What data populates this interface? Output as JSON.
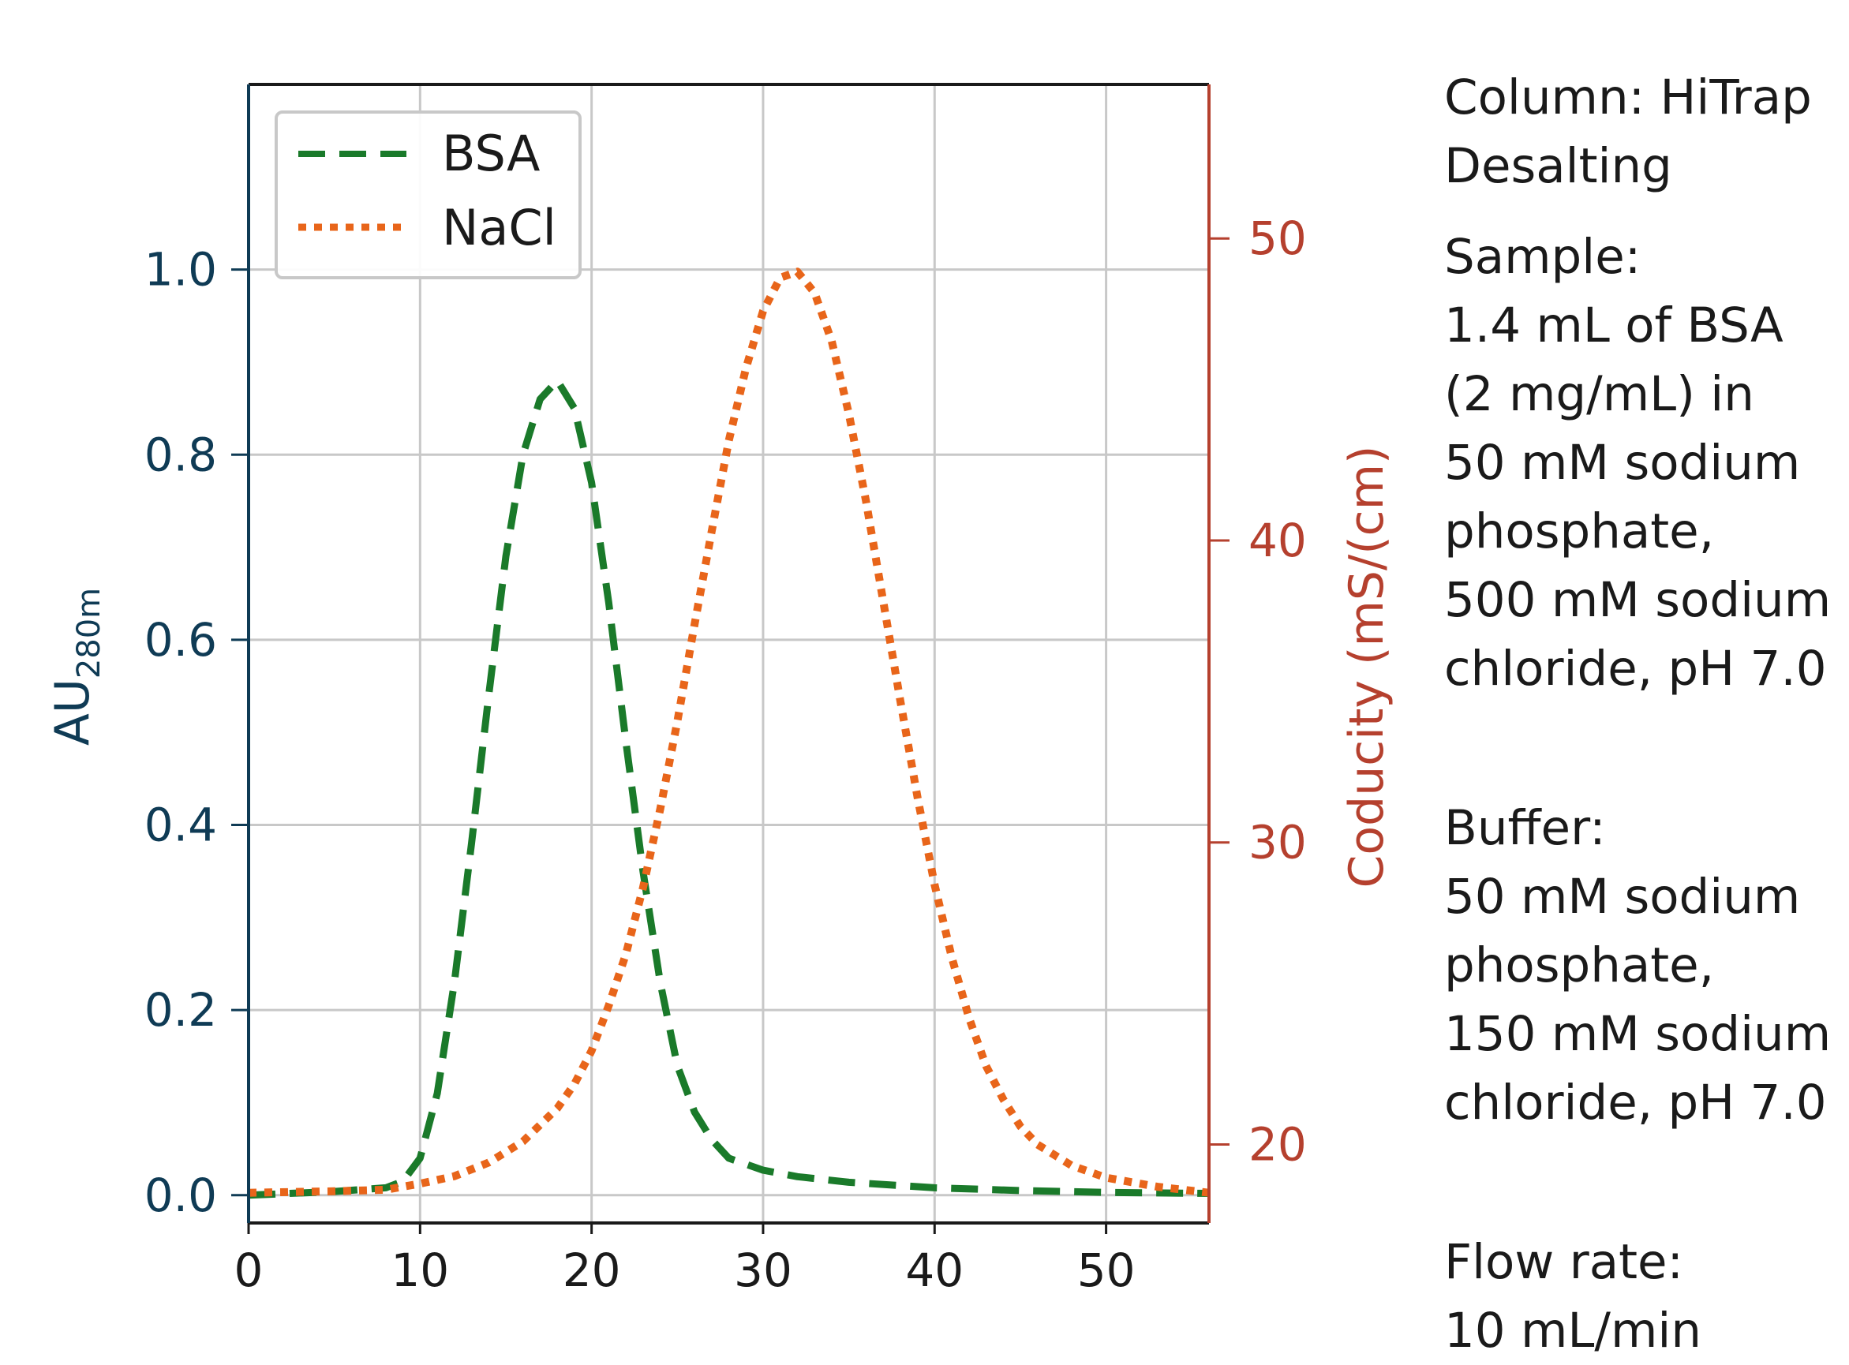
{
  "chart_data": {
    "type": "line",
    "title": "",
    "xlabel": "",
    "ylabel": "AU",
    "ylabel_subscript": "280m",
    "y2label": "Coducity (mS/(cm)",
    "xlim": [
      0,
      56
    ],
    "ylim": [
      -0.03,
      1.2
    ],
    "y2lim": [
      17.4,
      55.1
    ],
    "x_ticks": [
      "0",
      "10",
      "20",
      "30",
      "40",
      "50"
    ],
    "y_ticks": [
      "0.0",
      "0.2",
      "0.4",
      "0.6",
      "0.8",
      "1.0"
    ],
    "y2_ticks": [
      "20",
      "30",
      "40",
      "50"
    ],
    "grid": true,
    "legend_position": "top-left",
    "series": [
      {
        "name": "BSA",
        "axis": "left",
        "style": "dashed",
        "color": "#1a7a2a",
        "x": [
          0,
          5,
          8,
          9,
          10,
          11,
          12,
          13,
          14,
          15,
          16,
          17,
          18,
          19,
          20,
          21,
          22,
          23,
          24,
          25,
          26,
          27,
          28,
          30,
          32,
          35,
          40,
          45,
          50,
          56
        ],
        "y": [
          0.0,
          0.004,
          0.008,
          0.015,
          0.04,
          0.11,
          0.23,
          0.38,
          0.54,
          0.69,
          0.8,
          0.86,
          0.88,
          0.85,
          0.77,
          0.64,
          0.49,
          0.35,
          0.23,
          0.14,
          0.09,
          0.06,
          0.04,
          0.027,
          0.02,
          0.014,
          0.008,
          0.005,
          0.003,
          0.002
        ]
      },
      {
        "name": "NaCl",
        "axis": "right",
        "style": "dotted",
        "color": "#e8651a",
        "x": [
          0,
          5,
          8,
          10,
          12,
          14,
          16,
          18,
          19,
          20,
          21,
          22,
          23,
          24,
          25,
          26,
          27,
          28,
          29,
          30,
          31,
          32,
          33,
          34,
          35,
          36,
          37,
          38,
          39,
          40,
          41,
          42,
          43,
          44,
          45,
          46,
          48,
          50,
          53,
          56
        ],
        "y": [
          18.4,
          18.45,
          18.5,
          18.7,
          18.95,
          19.4,
          20.1,
          21.2,
          22.0,
          23.1,
          24.6,
          26.3,
          28.5,
          31.1,
          34.0,
          37.2,
          40.3,
          43.3,
          45.7,
          47.6,
          48.7,
          48.9,
          48.2,
          46.6,
          44.2,
          41.3,
          38.0,
          34.7,
          31.5,
          28.6,
          26.2,
          24.2,
          22.6,
          21.5,
          20.6,
          20.0,
          19.3,
          18.9,
          18.6,
          18.4
        ]
      }
    ]
  },
  "info": {
    "column_lines": [
      "Column: HiTrap",
      "Desalting"
    ],
    "sample_lines": [
      "Sample:",
      "1.4 mL of BSA",
      "(2 mg/mL) in",
      "50 mM sodium",
      "phosphate,",
      "500 mM sodium",
      "chloride, pH 7.0"
    ],
    "buffer_lines": [
      "Buffer:",
      "50 mM sodium",
      "phosphate,",
      "150 mM sodium",
      "chloride, pH 7.0"
    ],
    "flow_lines": [
      "Flow rate:",
      "10 mL/min"
    ]
  },
  "colors": {
    "left_axis": "#0f3b55",
    "right_axis": "#b5402e",
    "grid": "#c8c8c8"
  }
}
